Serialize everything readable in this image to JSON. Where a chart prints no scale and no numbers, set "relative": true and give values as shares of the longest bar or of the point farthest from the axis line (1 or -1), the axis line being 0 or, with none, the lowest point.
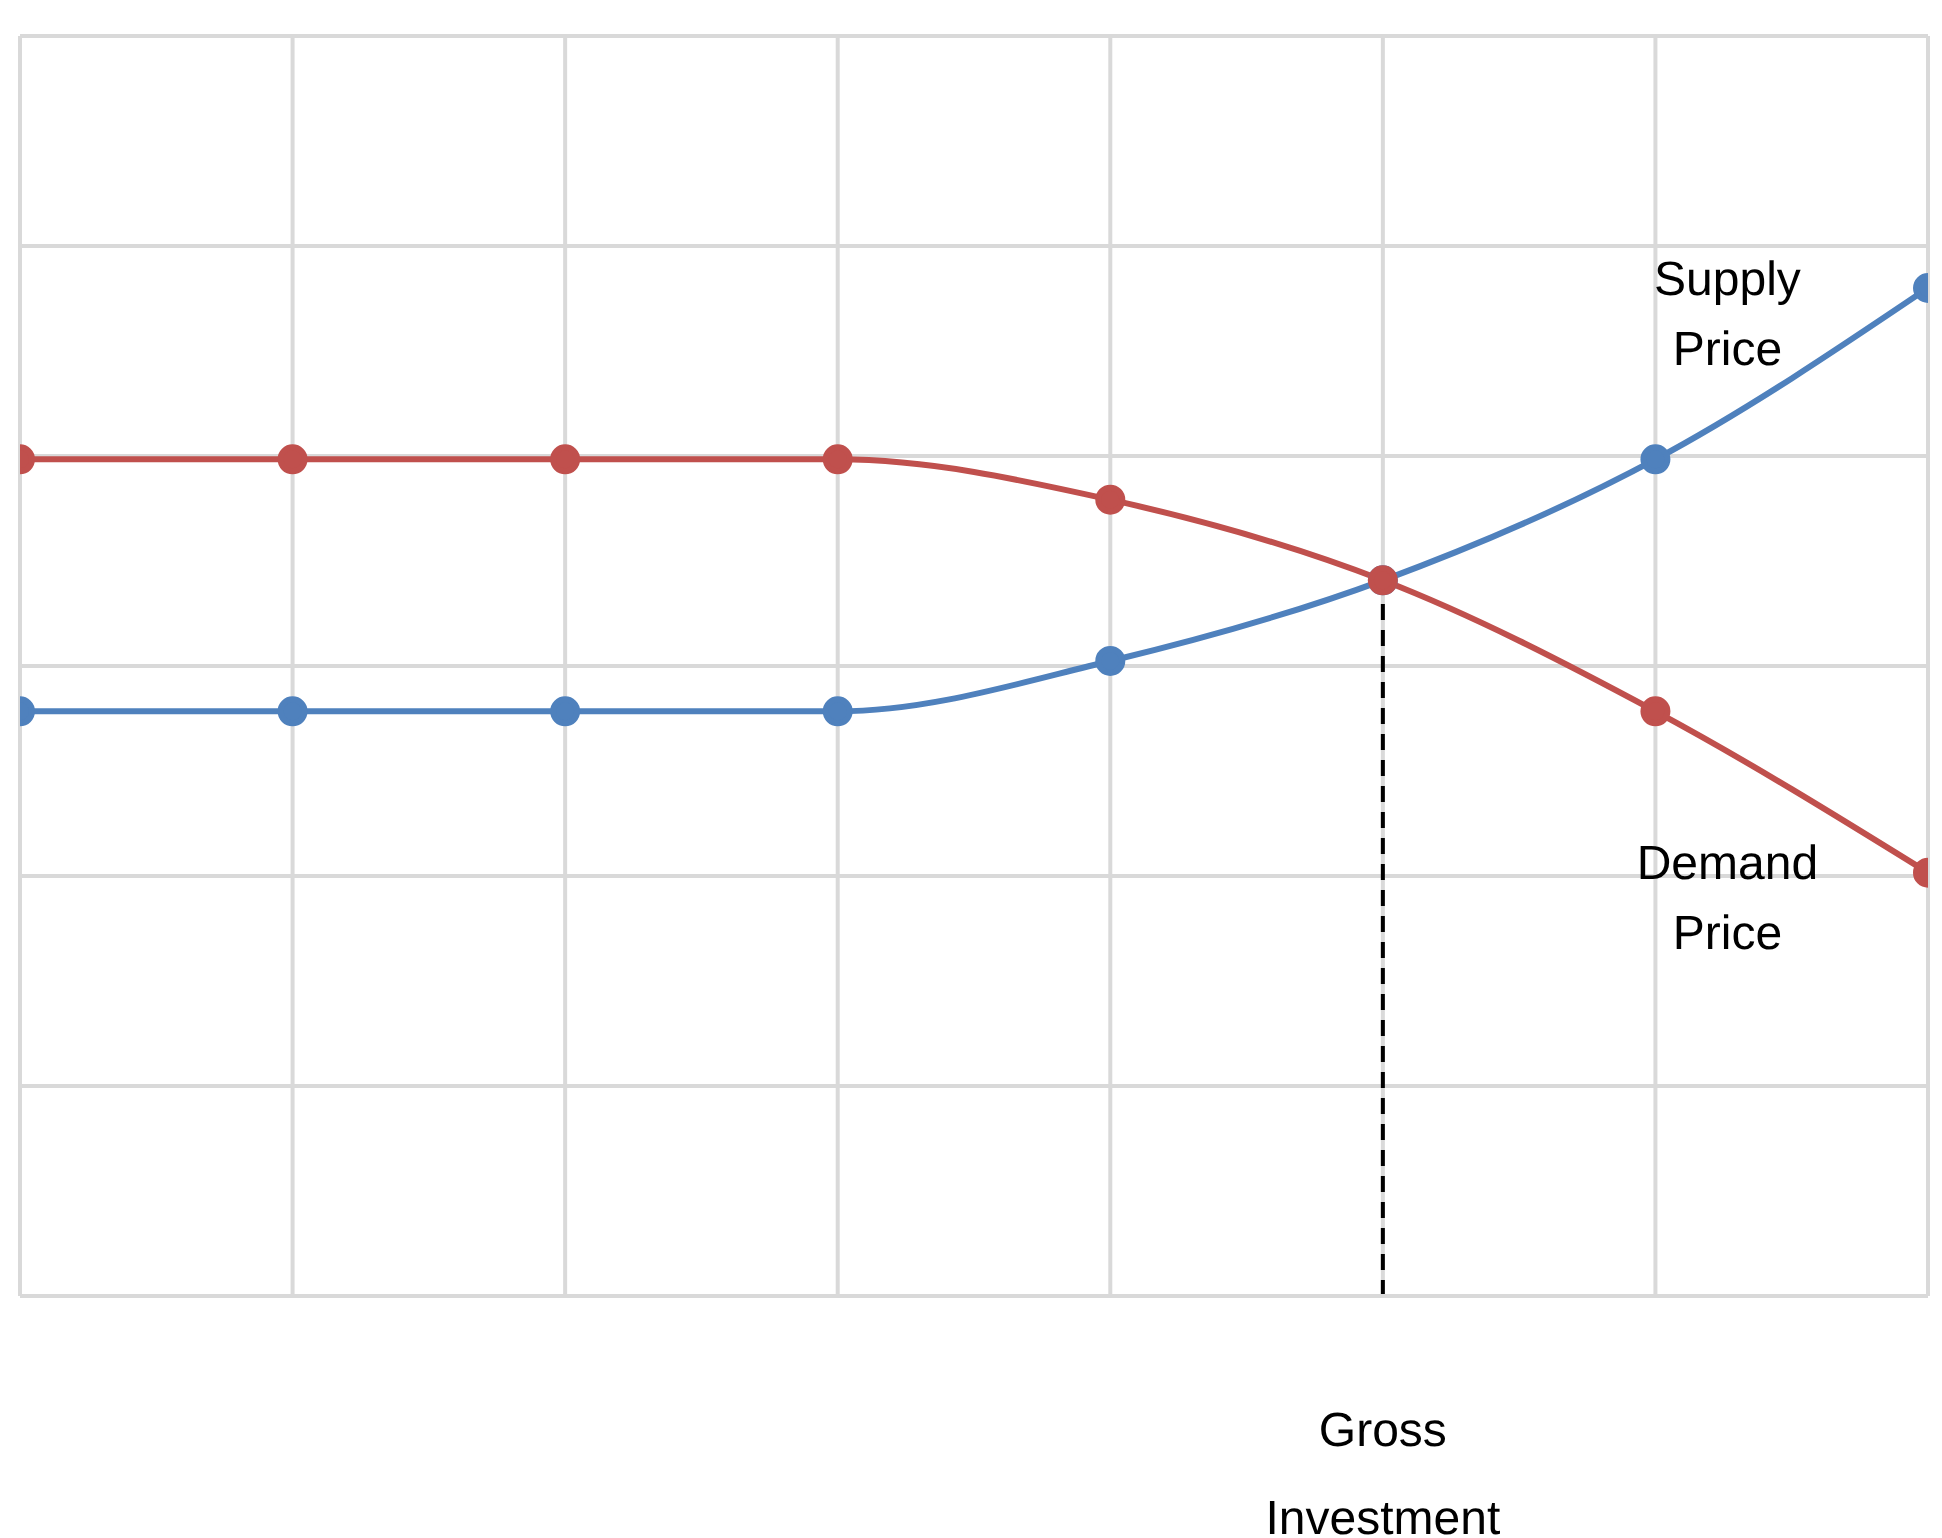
{
  "chart_data": {
    "type": "line",
    "relative": true,
    "categories": [
      null,
      null,
      null,
      null,
      null,
      null,
      null,
      null
    ],
    "series": [
      {
        "name": "Demand Price",
        "color": "#c0504d",
        "values": [
          0.83,
          0.83,
          0.83,
          0.83,
          0.79,
          0.71,
          0.58,
          0.42
        ]
      },
      {
        "name": "Supply Price",
        "color": "#4f81bd",
        "values": [
          0.58,
          0.58,
          0.58,
          0.58,
          0.63,
          0.71,
          0.83,
          1
        ]
      }
    ],
    "marker": "circle",
    "grid": true,
    "legend": false,
    "annotations": [
      "Gross Investment"
    ]
  }
}
